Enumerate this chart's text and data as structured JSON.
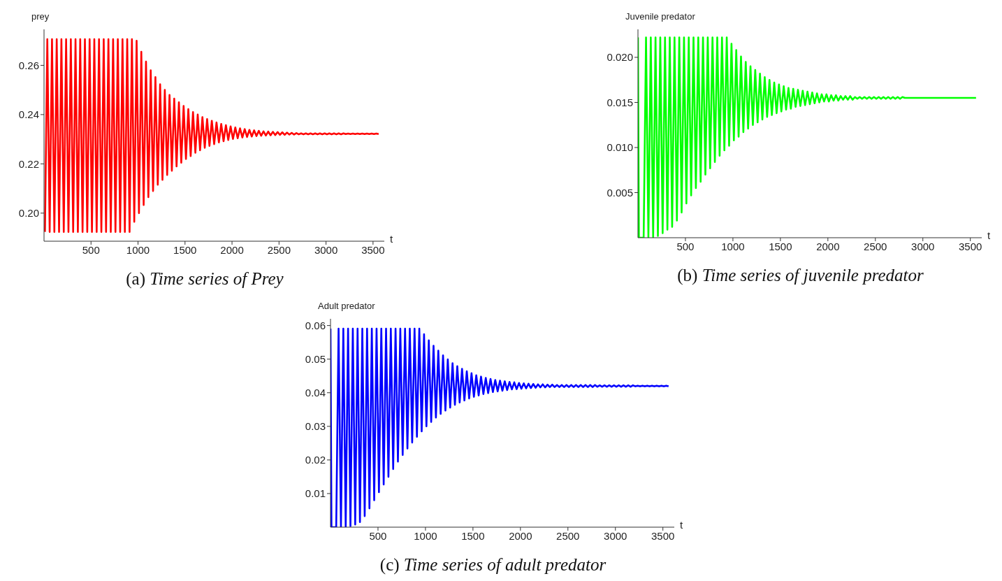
{
  "chart_data": [
    {
      "type": "line",
      "xlabel": "t",
      "ylabel": "prey",
      "annotations": [
        "(a) Time series of Prey"
      ],
      "x": [
        10,
        35,
        60,
        85,
        110,
        135,
        160,
        185,
        210,
        235,
        260,
        285,
        310,
        335,
        360,
        385,
        410,
        435,
        460,
        485,
        510,
        535,
        560,
        585,
        610,
        635,
        660,
        685,
        710,
        735,
        760,
        785,
        810,
        835,
        860,
        885,
        910,
        935,
        960,
        985,
        1010,
        1035,
        1060,
        1085,
        1110,
        1135,
        1160,
        1185,
        1210,
        1235,
        1260,
        1285,
        1310,
        1335,
        1360,
        1385,
        1410,
        1435,
        1460,
        1485,
        1510,
        1535,
        1560,
        1585,
        1610,
        1635,
        1660,
        1685,
        1710,
        1735,
        1760,
        1785,
        1810,
        1835,
        1860,
        1885,
        1910,
        1935,
        1960,
        1985,
        2010,
        2035,
        2060,
        2085,
        2110,
        2135,
        2160,
        2185,
        2210,
        2235,
        2260,
        2285,
        2310,
        2335,
        2360,
        2385,
        2410,
        2435,
        2460,
        2485,
        2510,
        2535,
        2560,
        2585,
        2610,
        2635,
        2660,
        2685,
        2710,
        2735,
        2760,
        2785,
        2810,
        2835,
        2860,
        2885,
        2910,
        2935,
        2960,
        2985,
        3010,
        3035,
        3060,
        3085,
        3110,
        3135,
        3160,
        3185,
        3210,
        3235,
        3260,
        3285,
        3310,
        3335,
        3360,
        3385,
        3410,
        3435,
        3460,
        3485,
        3510,
        3535,
        3560
      ],
      "series": [
        {
          "color": "#ff0000",
          "values": [
            0.1924,
            0.2706,
            0.1924,
            0.2706,
            0.1924,
            0.2706,
            0.1924,
            0.2706,
            0.1924,
            0.2706,
            0.1924,
            0.2706,
            0.1924,
            0.2706,
            0.1924,
            0.2706,
            0.1924,
            0.2706,
            0.1924,
            0.2706,
            0.1924,
            0.2706,
            0.1924,
            0.2706,
            0.1924,
            0.2706,
            0.1924,
            0.2706,
            0.1924,
            0.2706,
            0.1924,
            0.2706,
            0.1924,
            0.2706,
            0.1924,
            0.2706,
            0.1924,
            0.2706,
            0.1965,
            0.27,
            0.2,
            0.2655,
            0.2033,
            0.2615,
            0.2065,
            0.258,
            0.209,
            0.2552,
            0.2115,
            0.2523,
            0.2135,
            0.25,
            0.2155,
            0.248,
            0.2172,
            0.2465,
            0.219,
            0.245,
            0.2205,
            0.2435,
            0.222,
            0.2422,
            0.2232,
            0.241,
            0.2245,
            0.24,
            0.2255,
            0.239,
            0.2265,
            0.2382,
            0.2273,
            0.2375,
            0.228,
            0.2368,
            0.2287,
            0.2362,
            0.2292,
            0.2357,
            0.2297,
            0.2352,
            0.2301,
            0.2348,
            0.2304,
            0.2344,
            0.2307,
            0.2341,
            0.2309,
            0.2338,
            0.2311,
            0.2336,
            0.2313,
            0.2334,
            0.2314,
            0.2332,
            0.2315,
            0.2331,
            0.2316,
            0.233,
            0.2317,
            0.2329,
            0.2318,
            0.2328,
            0.2318,
            0.2327,
            0.2319,
            0.2326,
            0.2319,
            0.2325,
            0.232,
            0.2324,
            0.232,
            0.2324,
            0.232,
            0.2324,
            0.232,
            0.2324,
            0.232,
            0.2324,
            0.232,
            0.2324,
            0.232,
            0.2324,
            0.232,
            0.2324,
            0.232,
            0.2324,
            0.232,
            0.2324,
            0.2321,
            0.2323,
            0.2321,
            0.2323,
            0.2321,
            0.2323,
            0.2321,
            0.2323,
            0.2321,
            0.2323,
            0.2321,
            0.2323,
            0.2321,
            0.2323,
            0.2321
          ]
        }
      ],
      "xlim": [
        0,
        3620
      ],
      "ylim": [
        0.1886,
        0.2746
      ],
      "xticks": [
        500,
        1000,
        1500,
        2000,
        2500,
        3000,
        3500
      ],
      "yticks": [
        {
          "value": 0.2,
          "label": "0.20"
        },
        0.22,
        0.24,
        0.26
      ]
    },
    {
      "type": "line",
      "xlabel": "t",
      "ylabel": "Juvenile predator",
      "annotations": [
        "(b) Time series of juvenile predator"
      ],
      "x": [
        0,
        10,
        35,
        60,
        85,
        110,
        135,
        160,
        185,
        210,
        235,
        260,
        285,
        310,
        335,
        360,
        385,
        410,
        435,
        460,
        485,
        510,
        535,
        560,
        585,
        610,
        635,
        660,
        685,
        710,
        735,
        760,
        785,
        810,
        835,
        860,
        885,
        910,
        935,
        960,
        985,
        1010,
        1035,
        1060,
        1085,
        1110,
        1135,
        1160,
        1185,
        1210,
        1235,
        1260,
        1285,
        1310,
        1335,
        1360,
        1385,
        1410,
        1435,
        1460,
        1485,
        1510,
        1535,
        1560,
        1585,
        1610,
        1635,
        1660,
        1685,
        1710,
        1735,
        1760,
        1785,
        1810,
        1835,
        1860,
        1885,
        1910,
        1935,
        1960,
        1985,
        2010,
        2035,
        2060,
        2085,
        2110,
        2135,
        2160,
        2185,
        2210,
        2235,
        2260,
        2285,
        2310,
        2335,
        2360,
        2385,
        2410,
        2435,
        2460,
        2485,
        2510,
        2535,
        2560,
        2585,
        2610,
        2635,
        2660,
        2685,
        2710,
        2735,
        2760,
        2785,
        2810,
        2835,
        2860,
        2885,
        2910,
        2935,
        2960,
        2985,
        3010,
        3035,
        3060,
        3085,
        3110,
        3135,
        3160,
        3185,
        3210,
        3235,
        3260,
        3285,
        3310,
        3335,
        3360,
        3385,
        3410,
        3435,
        3460,
        3485,
        3510,
        3535,
        3560
      ],
      "series": [
        {
          "color": "#00ff00",
          "values": [
            0.0222,
            0,
            0,
            0,
            0.0222,
            0,
            0.0222,
            0,
            0.0222,
            0.0002,
            0.0222,
            0.0005,
            0.0222,
            0.0009,
            0.0222,
            0.0012,
            0.0222,
            0.0019,
            0.0222,
            0.0028,
            0.0222,
            0.0038,
            0.0222,
            0.0047,
            0.0222,
            0.0055,
            0.0222,
            0.0062,
            0.0222,
            0.007,
            0.0222,
            0.0077,
            0.0222,
            0.0084,
            0.0222,
            0.0091,
            0.0222,
            0.0097,
            0.0222,
            0.0102,
            0.0215,
            0.0108,
            0.0208,
            0.0112,
            0.0201,
            0.0117,
            0.0195,
            0.0121,
            0.019,
            0.0125,
            0.0186,
            0.0128,
            0.0182,
            0.0131,
            0.0178,
            0.0134,
            0.0175,
            0.0136,
            0.0172,
            0.0138,
            0.017,
            0.014,
            0.0168,
            0.0142,
            0.0166,
            0.0143,
            0.0165,
            0.0145,
            0.0164,
            0.0146,
            0.0163,
            0.0147,
            0.0162,
            0.0148,
            0.0161,
            0.0149,
            0.016,
            0.015,
            0.0159,
            0.0151,
            0.0159,
            0.0151,
            0.0158,
            0.0152,
            0.0158,
            0.0152,
            0.0157,
            0.0153,
            0.0157,
            0.0153,
            0.0157,
            0.0153,
            0.0156,
            0.0154,
            0.0156,
            0.0154,
            0.0156,
            0.0154,
            0.0156,
            0.0154,
            0.0156,
            0.0154,
            0.0156,
            0.0154,
            0.0156,
            0.0154,
            0.0156,
            0.0154,
            0.0156,
            0.0154,
            0.0156,
            0.0154,
            0.0156,
            0.0155,
            0.0155,
            0.0155,
            0.0155,
            0.0155,
            0.0155,
            0.0155,
            0.0155,
            0.0155,
            0.0155,
            0.0155,
            0.0155,
            0.0155,
            0.0155,
            0.0155,
            0.0155,
            0.0155,
            0.0155,
            0.0155,
            0.0155,
            0.0155,
            0.0155,
            0.0155,
            0.0155,
            0.0155,
            0.0155,
            0.0155,
            0.0155,
            0.0155,
            0.0155,
            0.0155
          ]
        }
      ],
      "xlim": [
        0,
        3620
      ],
      "ylim": [
        0,
        0.0231
      ],
      "xticks": [
        500,
        1000,
        1500,
        2000,
        2500,
        3000,
        3500
      ],
      "yticks": [
        0.005,
        {
          "value": 0.01,
          "label": "0.010"
        },
        0.015,
        {
          "value": 0.02,
          "label": "0.020"
        }
      ]
    },
    {
      "type": "line",
      "xlabel": "t",
      "ylabel": "Adult predator",
      "annotations": [
        "(c) Time series of adult predator"
      ],
      "x": [
        0,
        10,
        35,
        60,
        85,
        110,
        135,
        160,
        185,
        210,
        235,
        260,
        285,
        310,
        335,
        360,
        385,
        410,
        435,
        460,
        485,
        510,
        535,
        560,
        585,
        610,
        635,
        660,
        685,
        710,
        735,
        760,
        785,
        810,
        835,
        860,
        885,
        910,
        935,
        960,
        985,
        1010,
        1035,
        1060,
        1085,
        1110,
        1135,
        1160,
        1185,
        1210,
        1235,
        1260,
        1285,
        1310,
        1335,
        1360,
        1385,
        1410,
        1435,
        1460,
        1485,
        1510,
        1535,
        1560,
        1585,
        1610,
        1635,
        1660,
        1685,
        1710,
        1735,
        1760,
        1785,
        1810,
        1835,
        1860,
        1885,
        1910,
        1935,
        1960,
        1985,
        2010,
        2035,
        2060,
        2085,
        2110,
        2135,
        2160,
        2185,
        2210,
        2235,
        2260,
        2285,
        2310,
        2335,
        2360,
        2385,
        2410,
        2435,
        2460,
        2485,
        2510,
        2535,
        2560,
        2585,
        2610,
        2635,
        2660,
        2685,
        2710,
        2735,
        2760,
        2785,
        2810,
        2835,
        2860,
        2885,
        2910,
        2935,
        2960,
        2985,
        3010,
        3035,
        3060,
        3085,
        3110,
        3135,
        3160,
        3185,
        3210,
        3235,
        3260,
        3285,
        3310,
        3335,
        3360,
        3385,
        3410,
        3435,
        3460,
        3485,
        3510,
        3535,
        3560
      ],
      "series": [
        {
          "color": "#0000ff",
          "values": [
            0.0591,
            0,
            0,
            0,
            0.0591,
            0,
            0.0591,
            0,
            0.0591,
            0.0003,
            0.0591,
            0.0008,
            0.0591,
            0.0015,
            0.0591,
            0.0033,
            0.0591,
            0.0056,
            0.0591,
            0.008,
            0.0591,
            0.0104,
            0.0591,
            0.0127,
            0.0591,
            0.015,
            0.0591,
            0.0173,
            0.0591,
            0.0195,
            0.0591,
            0.0215,
            0.0591,
            0.0234,
            0.0591,
            0.0252,
            0.0591,
            0.0269,
            0.0591,
            0.0285,
            0.0574,
            0.03,
            0.0556,
            0.0313,
            0.054,
            0.0326,
            0.0525,
            0.0337,
            0.0511,
            0.0347,
            0.0499,
            0.0356,
            0.0488,
            0.0364,
            0.0479,
            0.0371,
            0.0471,
            0.0377,
            0.0464,
            0.0383,
            0.0458,
            0.0388,
            0.0452,
            0.0392,
            0.0448,
            0.0396,
            0.0444,
            0.0399,
            0.0441,
            0.0402,
            0.0438,
            0.0404,
            0.0436,
            0.0406,
            0.0434,
            0.0408,
            0.0432,
            0.041,
            0.0431,
            0.0411,
            0.0429,
            0.0412,
            0.0428,
            0.0413,
            0.0427,
            0.0414,
            0.0426,
            0.0415,
            0.0425,
            0.0416,
            0.0425,
            0.0416,
            0.0424,
            0.0417,
            0.0424,
            0.0417,
            0.0423,
            0.0417,
            0.0423,
            0.0417,
            0.0423,
            0.0417,
            0.0423,
            0.0417,
            0.0423,
            0.0417,
            0.0423,
            0.0417,
            0.0423,
            0.0417,
            0.0423,
            0.0417,
            0.0423,
            0.0418,
            0.0422,
            0.0418,
            0.0422,
            0.0418,
            0.0422,
            0.0418,
            0.0422,
            0.0418,
            0.0422,
            0.0418,
            0.0422,
            0.0418,
            0.0422,
            0.0418,
            0.0422,
            0.0419,
            0.0421,
            0.0419,
            0.0421,
            0.0419,
            0.0421,
            0.0419,
            0.0421,
            0.0419,
            0.0421,
            0.0419,
            0.0421,
            0.0419,
            0.0421,
            0.0419
          ]
        }
      ],
      "xlim": [
        0,
        3620
      ],
      "ylim": [
        0,
        0.062
      ],
      "xticks": [
        500,
        1000,
        1500,
        2000,
        2500,
        3000,
        3500
      ],
      "yticks": [
        0.01,
        0.02,
        0.03,
        0.04,
        0.05,
        0.06
      ]
    }
  ]
}
